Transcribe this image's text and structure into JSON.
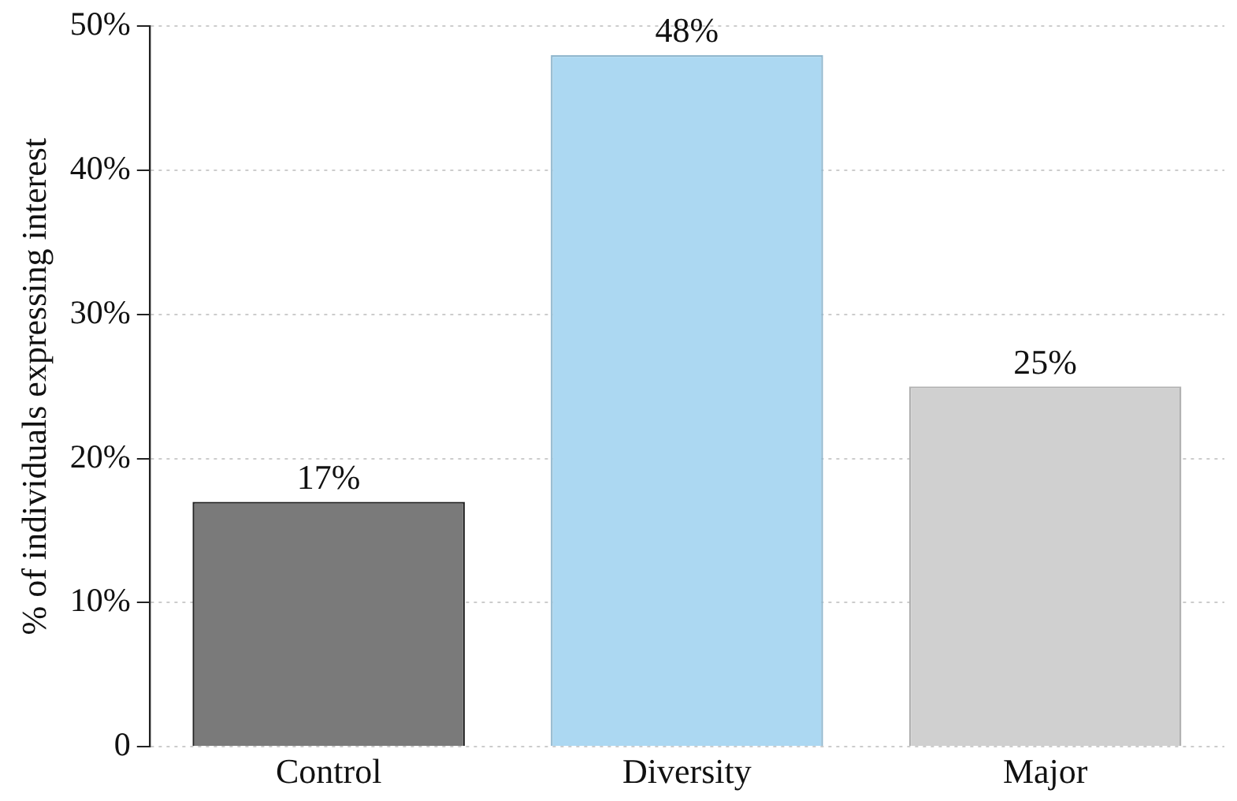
{
  "chart_data": {
    "type": "bar",
    "ylabel": "% of individuals expressing interest",
    "categories": [
      "Control",
      "Diversity",
      "Major"
    ],
    "values": [
      17,
      48,
      25
    ],
    "value_labels": [
      "17%",
      "48%",
      "25%"
    ],
    "colors": [
      "#7a7a7a",
      "#acd8f2",
      "#d0d0d0"
    ],
    "ylim": [
      0,
      50
    ],
    "yticks": [
      0,
      {
        "value": 10,
        "label": "10%"
      },
      {
        "value": 20,
        "label": "20%"
      },
      {
        "value": 30,
        "label": "30%"
      },
      {
        "value": 40,
        "label": "40%"
      },
      {
        "value": 50,
        "label": "50%"
      }
    ],
    "grid": "y",
    "legend": false
  }
}
